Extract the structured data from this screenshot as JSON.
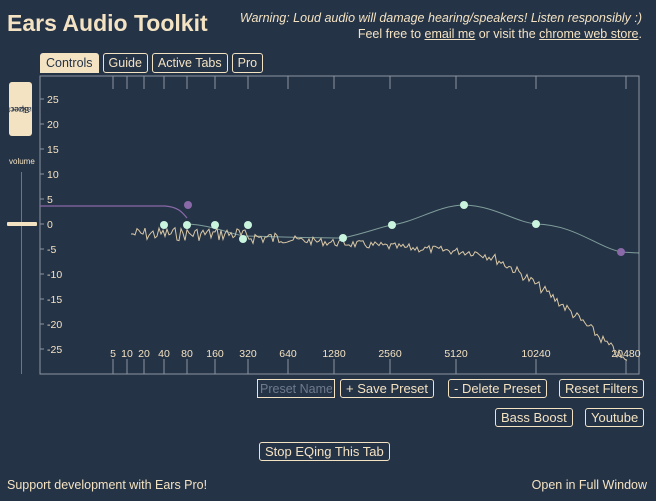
{
  "app": {
    "title": "Ears Audio Toolkit",
    "warning": "Warning: Loud audio will damage hearing/speakers! Listen responsibly :)",
    "feel_free_prefix": "Feel free to ",
    "email_link": "email me",
    "visit_text": " or visit the ",
    "store_link": "chrome web store",
    "period": "."
  },
  "tabs": [
    {
      "label": "Controls",
      "active": true
    },
    {
      "label": "Guide",
      "active": false
    },
    {
      "label": "Active Tabs",
      "active": false
    },
    {
      "label": "Pro",
      "active": false
    }
  ],
  "sidebar": {
    "spectrum_line1": "Spectrum",
    "spectrum_line2": "Visualizer",
    "volume_label": "volume"
  },
  "eq": {
    "y_ticks": [
      "25",
      "20",
      "15",
      "10",
      "5",
      "0",
      "-5",
      "-10",
      "-15",
      "-20",
      "-25"
    ],
    "x_ticks": [
      "5",
      "10",
      "20",
      "40",
      "80",
      "160",
      "320",
      "640",
      "1280",
      "2560",
      "5120",
      "10240",
      "20480"
    ]
  },
  "controls": {
    "preset_placeholder": "Preset Name",
    "save_preset": "+ Save Preset",
    "delete_preset": "- Delete Preset",
    "reset_filters": "Reset Filters",
    "bass_boost": "Bass Boost",
    "youtube": "Youtube",
    "stop_eq": "Stop EQing This Tab"
  },
  "footer": {
    "support_link": "Support development with Ears Pro!",
    "open_full": "Open in Full Window"
  },
  "colors": {
    "background": "#253347",
    "text": "#f4e3c2",
    "filter_point": "#c9f4de",
    "pro_point": "#8a69a8"
  }
}
